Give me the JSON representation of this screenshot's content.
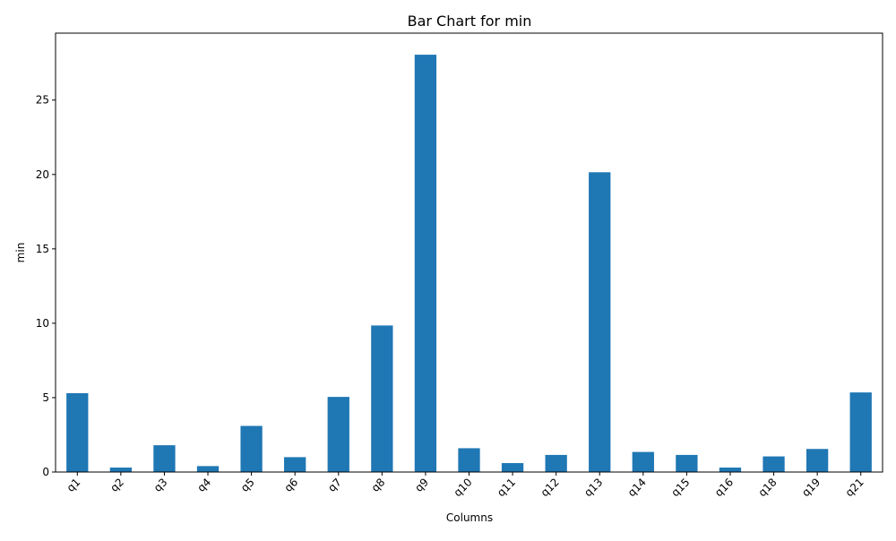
{
  "chart_data": {
    "type": "bar",
    "title": "Bar Chart for min",
    "xlabel": "Columns",
    "ylabel": "min",
    "categories": [
      "q1",
      "q2",
      "q3",
      "q4",
      "q5",
      "q6",
      "q7",
      "q8",
      "q9",
      "q10",
      "q11",
      "q12",
      "q13",
      "q14",
      "q15",
      "q16",
      "q18",
      "q19",
      "q21"
    ],
    "values": [
      5.3,
      0.3,
      1.8,
      0.4,
      3.1,
      1.0,
      5.05,
      9.85,
      28.05,
      1.6,
      0.6,
      1.15,
      20.15,
      1.35,
      1.15,
      0.3,
      1.05,
      1.55,
      5.35
    ],
    "ylim": [
      0,
      29.5
    ],
    "yticks": [
      0,
      5,
      10,
      15,
      20,
      25
    ],
    "ytick_labels": [
      "0",
      "5",
      "10",
      "15",
      "20",
      "25"
    ],
    "bar_color": "#1f77b4",
    "grid": false,
    "legend": "none"
  }
}
